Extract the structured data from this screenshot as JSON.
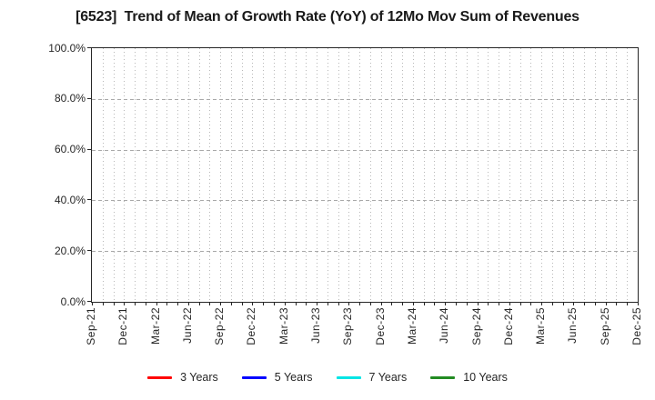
{
  "chart_data": {
    "type": "line",
    "title": "[6523]  Trend of Mean of Growth Rate (YoY) of 12Mo Mov Sum of Revenues",
    "title_note": "stock ticker 6523 in brackets",
    "x_labels": [
      "Sep-21",
      "Dec-21",
      "Mar-22",
      "Jun-22",
      "Sep-22",
      "Dec-22",
      "Mar-23",
      "Jun-23",
      "Sep-23",
      "Dec-23",
      "Mar-24",
      "Jun-24",
      "Sep-24",
      "Dec-24",
      "Mar-25",
      "Jun-25",
      "Sep-25",
      "Dec-25"
    ],
    "x_label_interval_months": 3,
    "x_total_months": 52,
    "y_tick_labels": [
      "100.0%",
      "80.0%",
      "60.0%",
      "40.0%",
      "20.0%",
      "0.0%"
    ],
    "y_tick_values": [
      100,
      80,
      60,
      40,
      20,
      0
    ],
    "ylim": [
      0,
      100
    ],
    "grid": {
      "vertical": "dotted, monthly",
      "horizontal": "dashed, every 20%"
    },
    "plot_is_empty": true,
    "series": [
      {
        "name": "3 Years",
        "color": "#ff0000",
        "values": []
      },
      {
        "name": "5 Years",
        "color": "#0000ff",
        "values": []
      },
      {
        "name": "7 Years",
        "color": "#00e5e5",
        "values": []
      },
      {
        "name": "10 Years",
        "color": "#228b22",
        "values": []
      }
    ],
    "legend_position": "bottom"
  }
}
